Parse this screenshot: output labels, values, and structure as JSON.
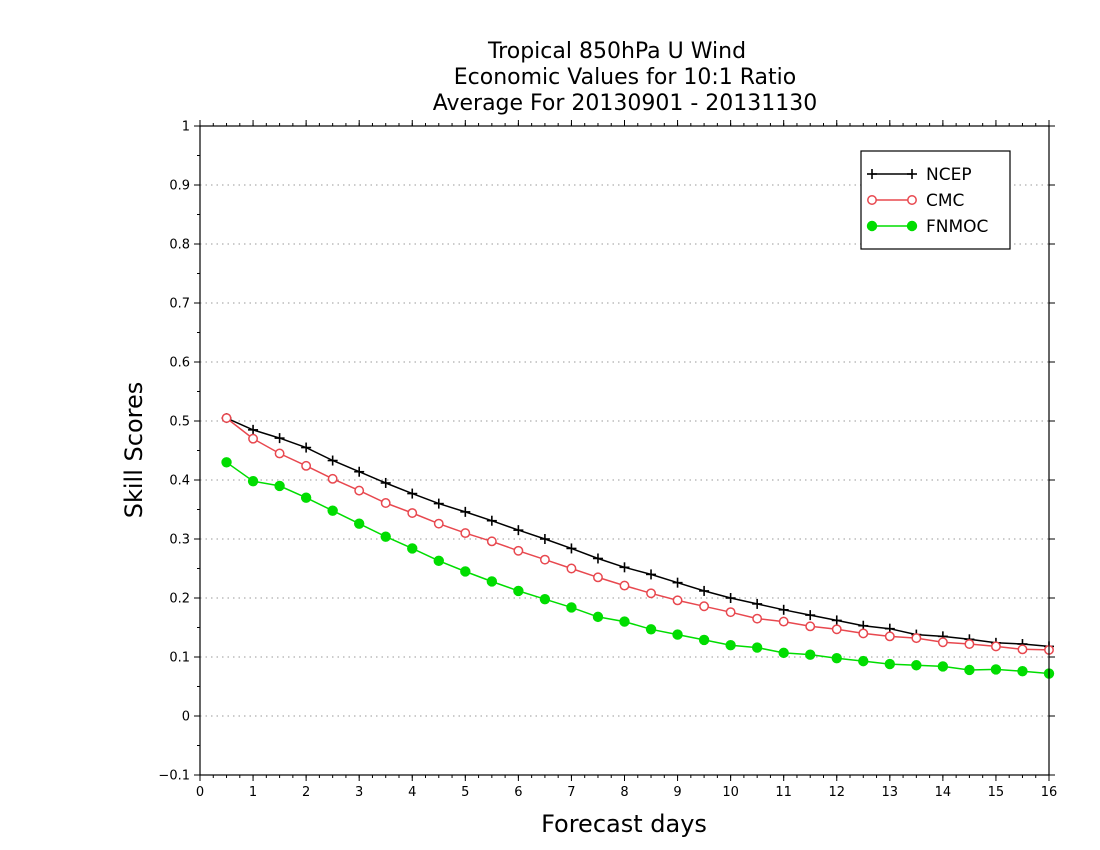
{
  "chart_data": {
    "type": "line",
    "title": [
      "Tropical 850hPa U Wind",
      "Economic Values for 10:1 Ratio",
      "Average For 20130901 - 20131130"
    ],
    "xlabel": "Forecast days",
    "ylabel": "Skill Scores",
    "xlim": [
      0,
      16
    ],
    "ylim": [
      -0.1,
      1
    ],
    "xticks": [
      0,
      1,
      2,
      3,
      4,
      5,
      6,
      7,
      8,
      9,
      10,
      11,
      12,
      13,
      14,
      15,
      16
    ],
    "yticks": [
      -0.1,
      0,
      0.1,
      0.2,
      0.3,
      0.4,
      0.5,
      0.6,
      0.7,
      0.8,
      0.9,
      1
    ],
    "ytick_labels": [
      "−0.1",
      "0",
      "0.1",
      "0.2",
      "0.3",
      "0.4",
      "0.5",
      "0.6",
      "0.7",
      "0.8",
      "0.9",
      "1"
    ],
    "grid": "horizontal dotted",
    "legend_position": "top-right",
    "x": [
      0.5,
      1,
      1.5,
      2,
      2.5,
      3,
      3.5,
      4,
      4.5,
      5,
      5.5,
      6,
      6.5,
      7,
      7.5,
      8,
      8.5,
      9,
      9.5,
      10,
      10.5,
      11,
      11.5,
      12,
      12.5,
      13,
      13.5,
      14,
      14.5,
      15,
      15.5,
      16
    ],
    "series": [
      {
        "name": "NCEP",
        "color": "#000000",
        "marker": "plus",
        "values": [
          0.505,
          0.485,
          0.471,
          0.455,
          0.433,
          0.414,
          0.395,
          0.377,
          0.36,
          0.346,
          0.331,
          0.315,
          0.3,
          0.284,
          0.267,
          0.252,
          0.24,
          0.226,
          0.212,
          0.2,
          0.19,
          0.18,
          0.171,
          0.162,
          0.153,
          0.148,
          0.138,
          0.135,
          0.13,
          0.124,
          0.122,
          0.118
        ]
      },
      {
        "name": "CMC",
        "color": "#e8484f",
        "marker": "open-circle",
        "values": [
          0.505,
          0.47,
          0.445,
          0.424,
          0.402,
          0.382,
          0.361,
          0.344,
          0.326,
          0.31,
          0.296,
          0.28,
          0.265,
          0.25,
          0.235,
          0.221,
          0.208,
          0.196,
          0.186,
          0.176,
          0.165,
          0.16,
          0.152,
          0.147,
          0.14,
          0.135,
          0.132,
          0.125,
          0.122,
          0.118,
          0.113,
          0.112
        ]
      },
      {
        "name": "FNMOC",
        "color": "#00dd00",
        "marker": "filled-circle",
        "values": [
          0.43,
          0.398,
          0.39,
          0.37,
          0.348,
          0.326,
          0.304,
          0.284,
          0.263,
          0.245,
          0.228,
          0.212,
          0.198,
          0.184,
          0.168,
          0.16,
          0.147,
          0.138,
          0.129,
          0.12,
          0.116,
          0.107,
          0.104,
          0.098,
          0.093,
          0.088,
          0.086,
          0.084,
          0.078,
          0.079,
          0.076,
          0.072
        ]
      }
    ]
  }
}
